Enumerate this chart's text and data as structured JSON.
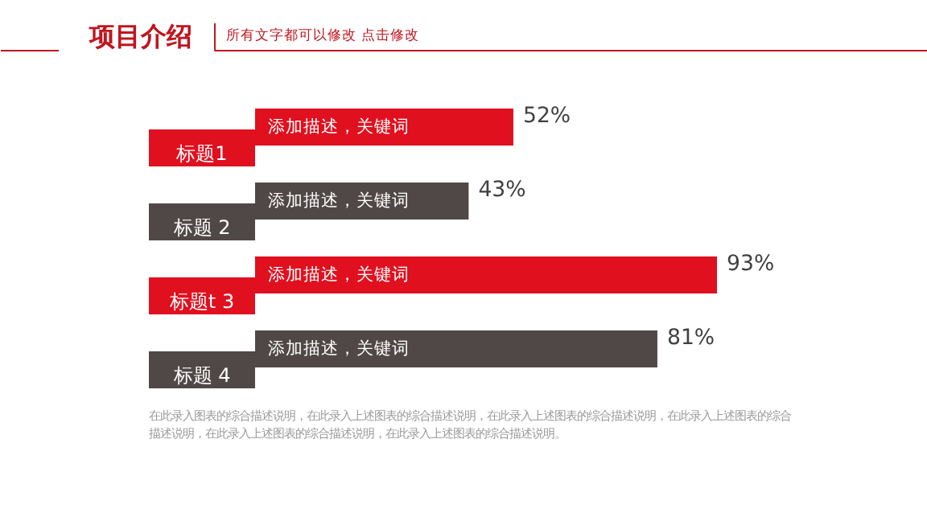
{
  "chart_data": {
    "type": "bar",
    "orientation": "horizontal",
    "title": "项目介绍",
    "subtitle": "所有文字都可以修改   点击修改",
    "categories": [
      "标题1",
      "标题 2",
      "标题t 3",
      "标题 4"
    ],
    "values": [
      52,
      43,
      93,
      81
    ],
    "colors": [
      "#e0101f",
      "#504847",
      "#e0101f",
      "#504847"
    ],
    "value_labels": [
      "52%",
      "43%",
      "93%",
      "81%"
    ],
    "annotations": [
      {
        "text": "添加描述，关键词",
        "y": "标题1"
      },
      {
        "text": "添加描述，关键词",
        "y": "标题 2"
      },
      {
        "text": "添加描述，关键词",
        "y": "标题t 3"
      },
      {
        "text": "添加描述，关键词",
        "y": "标题 4"
      },
      "在此录入图表的综合描述说明，在此录入上述图表的综合描述说明，在此录入上述图表的综合描述说明，在此录入上述图表的综合描述说明，在此录入上述图表的综合描述说明，在此录入上述图表的综合描述说明。"
    ],
    "grid": false
  }
}
